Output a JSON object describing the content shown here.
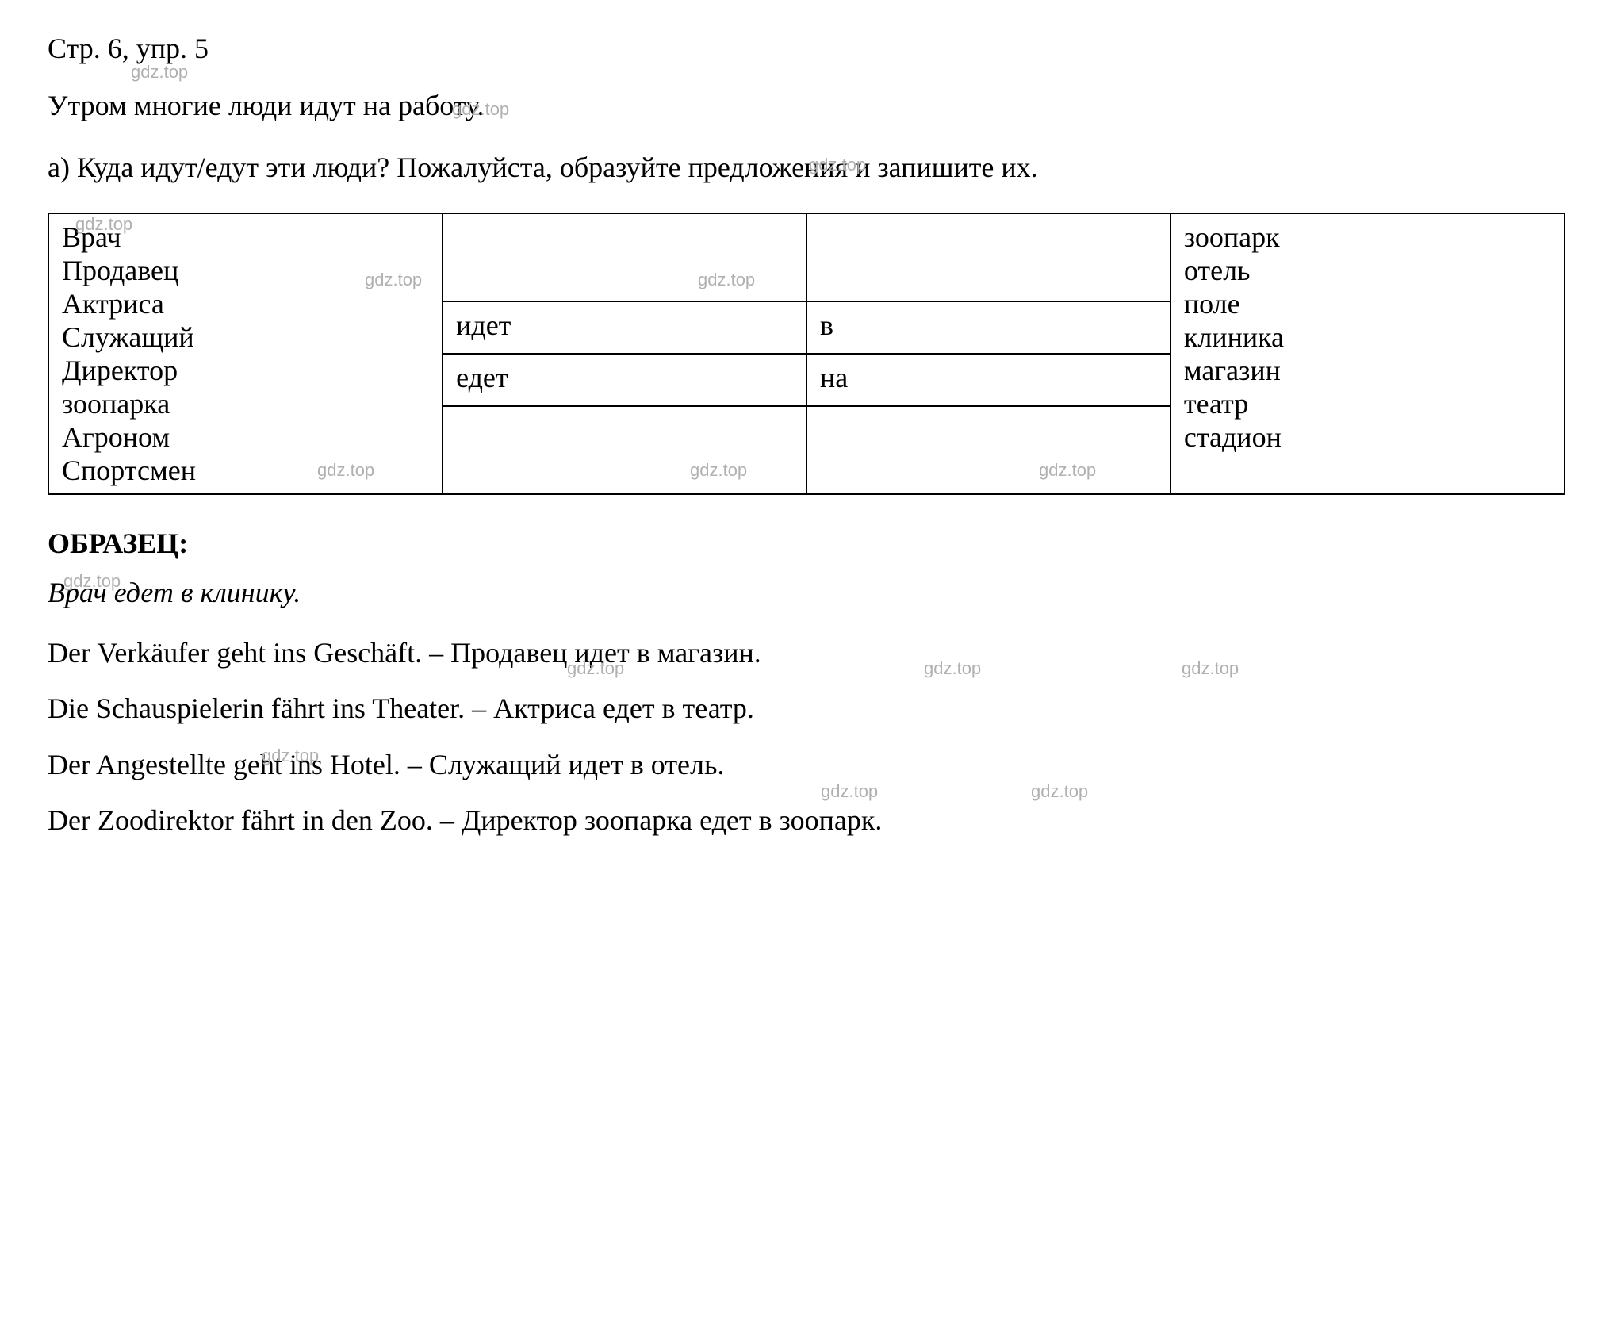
{
  "header": "Стр. 6, упр. 5",
  "intro": "Утром многие люди идут на работу.",
  "instruction": "а) Куда идут/едут эти люди? Пожалуйста, образуйте предложения и запишите их.",
  "table": {
    "left_column": [
      "Врач",
      "Продавец",
      "Актриса",
      "Служащий",
      "Директор",
      "зоопарка",
      "Агроном",
      "Спортсмен"
    ],
    "mid_row1_col1": "идет",
    "mid_row1_col2": "в",
    "mid_row2_col1": "едет",
    "mid_row2_col2": "на",
    "right_column": [
      "зоопарк",
      "отель",
      "поле",
      "клиника",
      "магазин",
      "театр",
      "стадион"
    ]
  },
  "sample_label": "ОБРАЗЕЦ:",
  "sample_text": "Врач едет в клинику.",
  "sentences": [
    "Der Verkäufer geht ins Geschäft. – Продавец идет в магазин.",
    "Die Schauspielerin fährt ins Theater. – Актриса едет в театр.",
    "Der Angestellte geht ins Hotel. – Служащий идет в отель.",
    "Der Zoodirektor fährt in den Zoo. – Директор зоопарка едет в зоопарк."
  ],
  "watermark_text": "gdz.top",
  "colors": {
    "background": "#ffffff",
    "text": "#000000",
    "border": "#000000",
    "watermark": "#b0b0b0"
  },
  "font_sizes": {
    "body": 36,
    "watermark": 22
  }
}
